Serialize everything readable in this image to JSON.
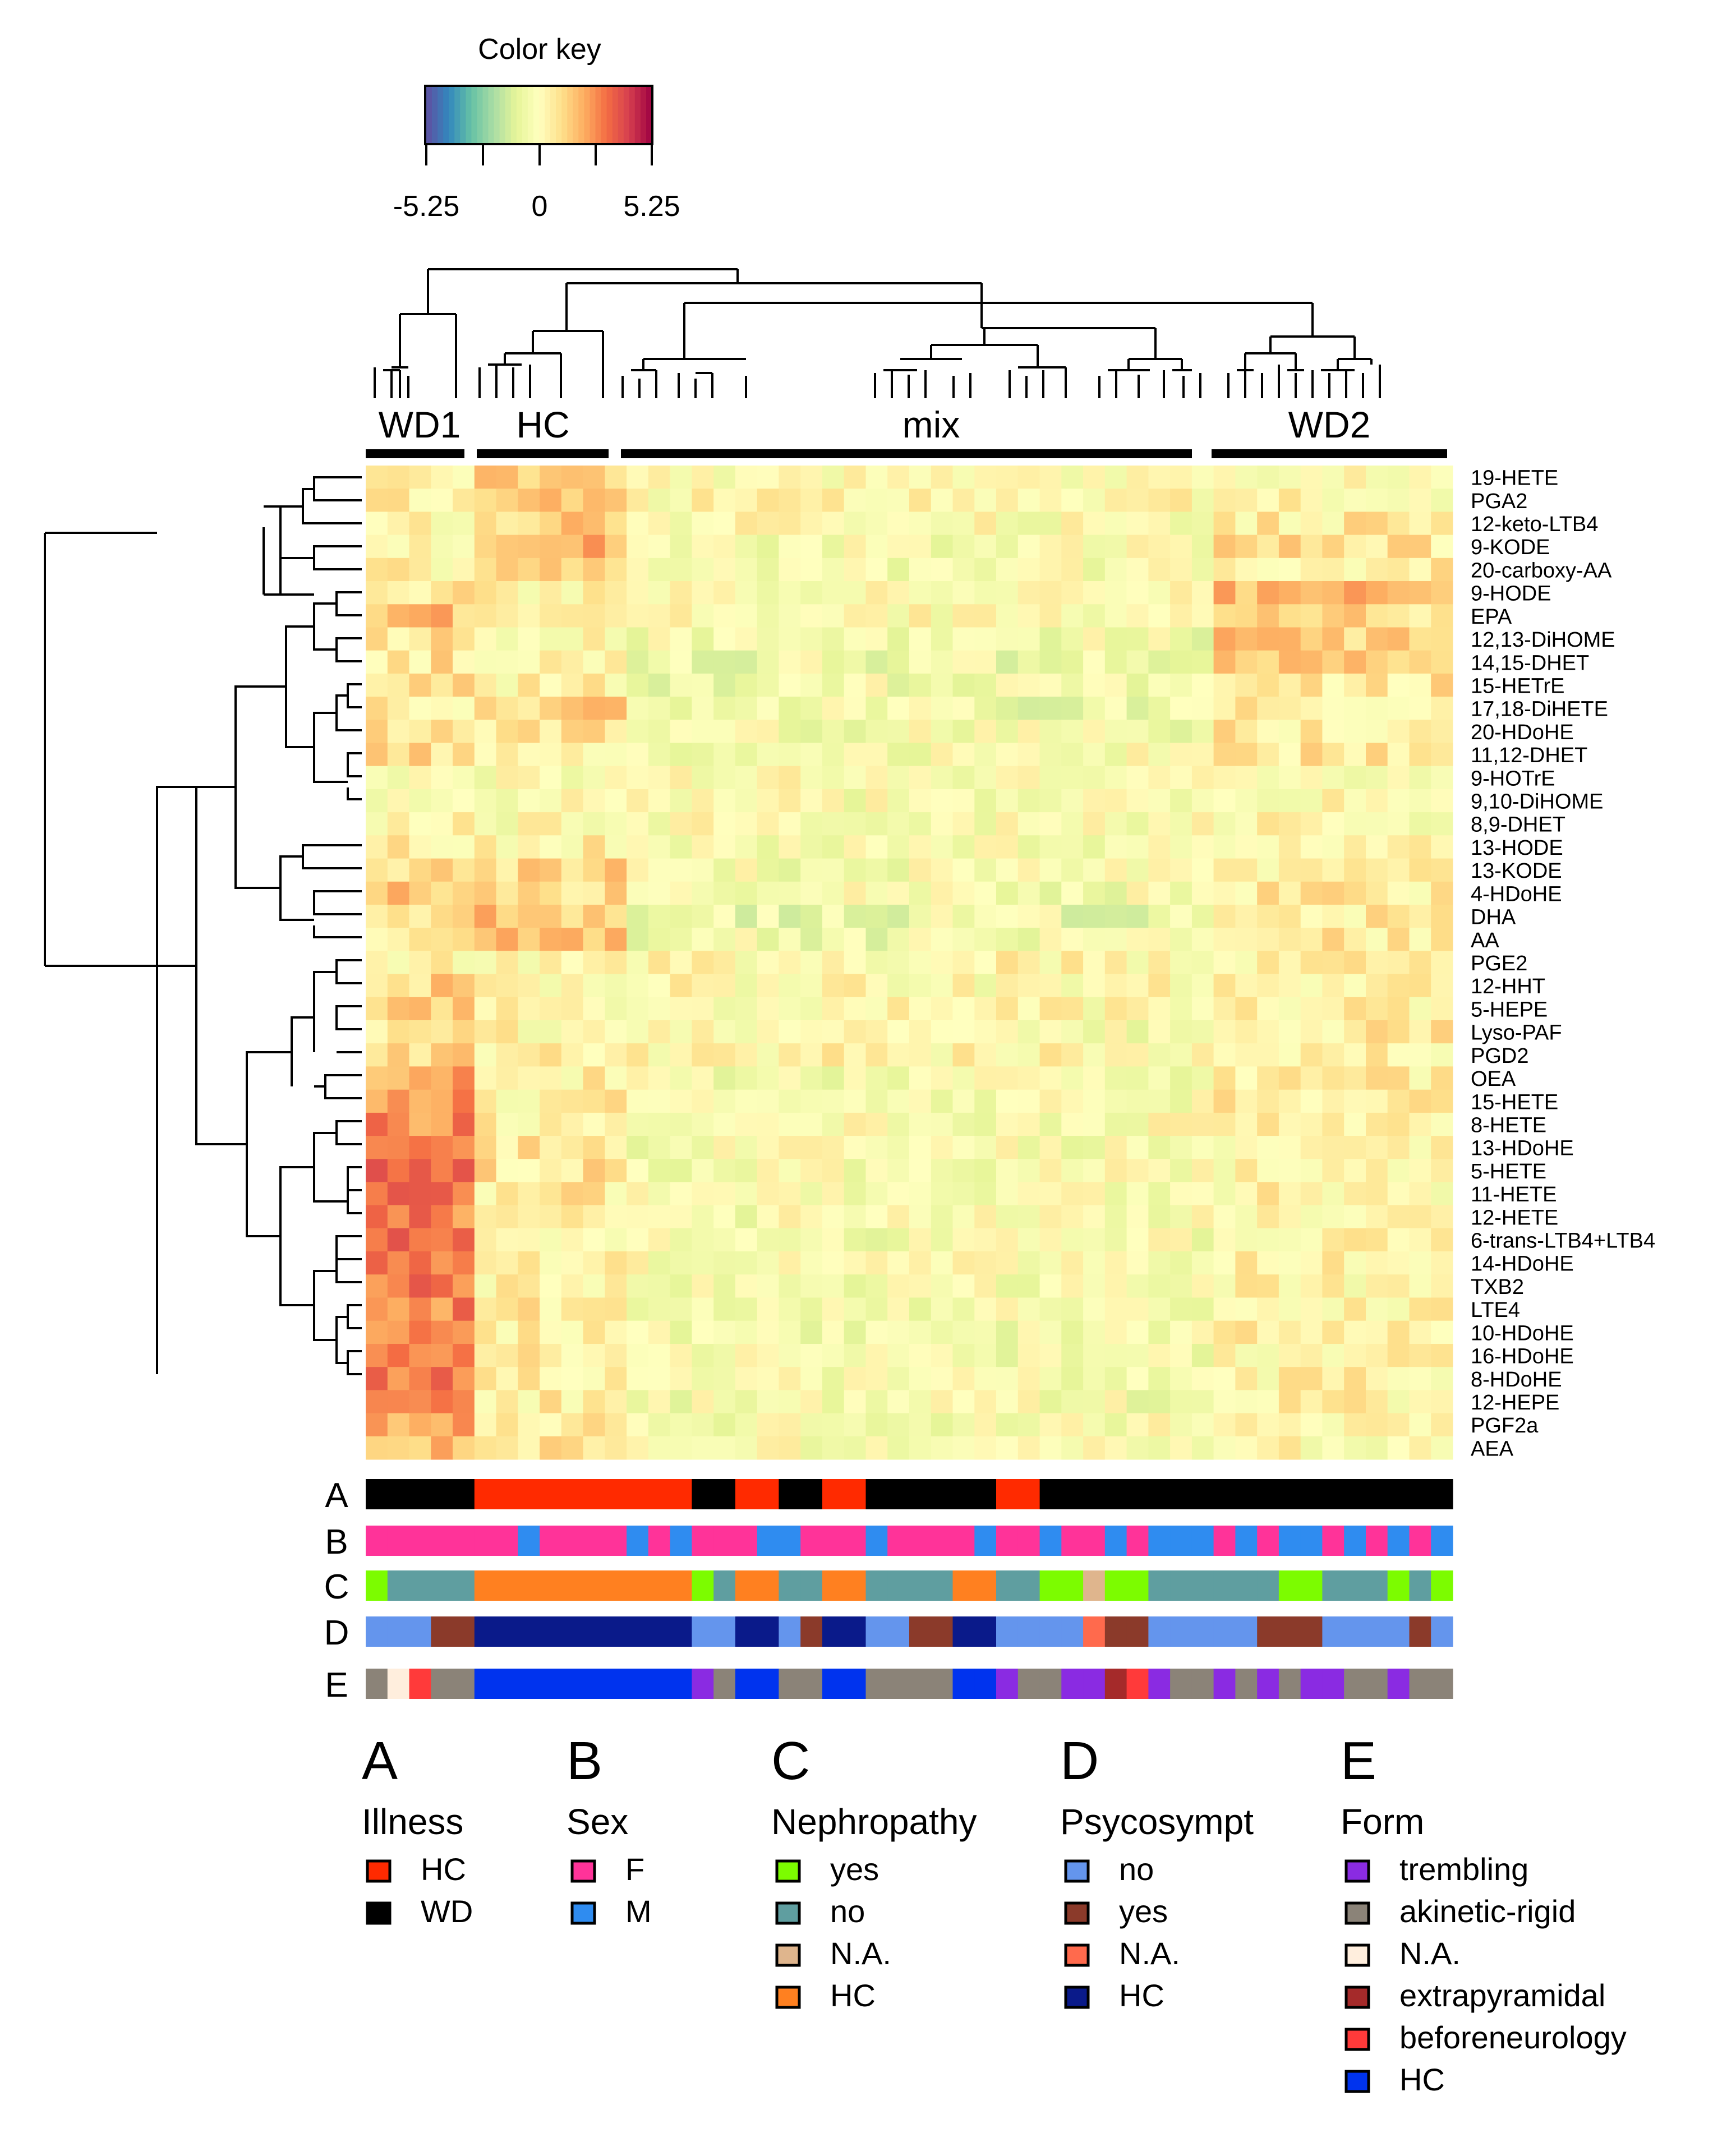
{
  "colors": {
    "scale": [
      "#5e4fa2",
      "#3288bd",
      "#66c2a5",
      "#abdda4",
      "#e6f598",
      "#ffffbf",
      "#fee08b",
      "#fdae61",
      "#f46d43",
      "#d53e4f",
      "#9e0142"
    ],
    "illness": {
      "HC": "#ff2a00",
      "WD": "#000000"
    },
    "sex": {
      "F": "#ff3399",
      "M": "#2f8cf0"
    },
    "nephropathy": {
      "yes": "#7cfc00",
      "no": "#5f9ea0",
      "N.A.": "#dfb58d",
      "HC": "#ff8020"
    },
    "psycosympt": {
      "no": "#6495ed",
      "yes": "#8b3a2a",
      "N.A.": "#ff6a4d",
      "HC": "#0a1a8a"
    },
    "form": {
      "trembling": "#8a2be2",
      "akinetic-rigid": "#8b8378",
      "N.A.": "#ffeedd",
      "extrapyramidal": "#a52a2a",
      "beforeneurology": "#ff3a3a",
      "HC": "#0033ee"
    }
  },
  "color_key": {
    "title": "Color key",
    "ticks": [
      "-5.25",
      "0",
      "5.25"
    ]
  },
  "clusters": [
    "WD1",
    "HC",
    "mix",
    "WD2"
  ],
  "chart_data": {
    "type": "heatmap",
    "title": "",
    "color_range": [
      -5.25,
      5.25
    ],
    "n_samples": 50,
    "cluster_spans": {
      "WD1": [
        0,
        4
      ],
      "HC": [
        5,
        11
      ],
      "mix": [
        12,
        38
      ],
      "WD2": [
        39,
        49
      ]
    },
    "rows": [
      "19-HETE",
      "PGA2",
      "12-keto-LTB4",
      "9-KODE",
      "20-carboxy-AA",
      "9-HODE",
      "EPA",
      "12,13-DiHOME",
      "14,15-DHET",
      "15-HETrE",
      "17,18-DiHETE",
      "20-HDoHE",
      "11,12-DHET",
      "9-HOTrE",
      "9,10-DiHOME",
      "8,9-DHET",
      "13-HODE",
      "13-KODE",
      "4-HDoHE",
      "DHA",
      "AA",
      "PGE2",
      "12-HHT",
      "5-HEPE",
      "Lyso-PAF",
      "PGD2",
      "OEA",
      "15-HETE",
      "8-HETE",
      "13-HDoHE",
      "5-HETE",
      "11-HETE",
      "12-HETE",
      "6-trans-LTB4+LTB4",
      "14-HDoHE",
      "TXB2",
      "LTE4",
      "10-HDoHE",
      "16-HDoHE",
      "8-HDoHE",
      "12-HEPE",
      "PGF2a",
      "AEA"
    ],
    "group_means": {
      "WD1": [
        0.3,
        0.5,
        0.2,
        0.4,
        0.3,
        0.8,
        1.6,
        1.0,
        0.8,
        0.8,
        0.6,
        1.2,
        1.0,
        0.0,
        0.1,
        0.1,
        0.4,
        1.2,
        1.6,
        1.0,
        0.6,
        0.3,
        1.2,
        1.6,
        0.8,
        1.0,
        2.0,
        2.4,
        2.6,
        2.8,
        3.2,
        3.0,
        2.8,
        3.4,
        3.0,
        3.2,
        2.8,
        2.6,
        3.0,
        2.8,
        3.2,
        2.0,
        1.8
      ],
      "HC": [
        1.2,
        1.6,
        1.4,
        1.8,
        1.6,
        0.2,
        0.3,
        0.3,
        0.3,
        0.4,
        1.2,
        1.0,
        0.6,
        0.0,
        0.1,
        0.0,
        0.4,
        1.2,
        1.2,
        1.6,
        1.4,
        0.3,
        0.2,
        0.3,
        0.3,
        0.3,
        0.4,
        0.4,
        0.5,
        0.6,
        0.8,
        0.6,
        0.6,
        0.5,
        0.5,
        0.5,
        0.6,
        0.6,
        0.5,
        0.5,
        0.5,
        0.6,
        1.0
      ],
      "mix": [
        0.0,
        0.1,
        0.0,
        -0.2,
        -0.2,
        -0.1,
        0.0,
        -0.4,
        -0.5,
        -0.4,
        -0.5,
        -0.3,
        -0.2,
        0.0,
        -0.2,
        -0.1,
        -0.3,
        -0.3,
        -0.3,
        -0.6,
        -0.5,
        0.2,
        0.1,
        0.1,
        -0.2,
        0.2,
        -0.3,
        -0.2,
        -0.1,
        -0.2,
        -0.2,
        -0.2,
        -0.2,
        -0.3,
        -0.2,
        -0.2,
        -0.2,
        -0.3,
        -0.3,
        -0.3,
        -0.3,
        -0.2,
        -0.1
      ],
      "WD2": [
        0.2,
        0.2,
        0.6,
        0.8,
        0.6,
        1.6,
        1.0,
        1.4,
        1.2,
        0.8,
        0.6,
        0.6,
        0.6,
        0.0,
        0.3,
        0.1,
        0.6,
        0.6,
        0.6,
        0.6,
        0.6,
        0.3,
        0.4,
        0.4,
        0.6,
        0.5,
        0.5,
        0.6,
        0.4,
        0.3,
        0.3,
        0.3,
        0.3,
        0.4,
        0.3,
        0.3,
        0.3,
        0.3,
        0.3,
        0.3,
        0.3,
        0.3,
        0.2
      ]
    },
    "annotations": {
      "A": {
        "values": [
          "WD",
          "WD",
          "WD",
          "WD",
          "WD",
          "HC",
          "HC",
          "HC",
          "HC",
          "HC",
          "HC",
          "HC",
          "HC",
          "HC",
          "HC",
          "WD",
          "WD",
          "HC",
          "HC",
          "WD",
          "WD",
          "HC",
          "HC",
          "WD",
          "WD",
          "WD",
          "WD",
          "WD",
          "WD",
          "HC",
          "HC",
          "WD",
          "WD",
          "WD",
          "WD",
          "WD",
          "WD",
          "WD",
          "WD",
          "WD",
          "WD",
          "WD",
          "WD",
          "WD",
          "WD",
          "WD",
          "WD",
          "WD",
          "WD",
          "WD"
        ]
      },
      "B": {
        "values": [
          "F",
          "F",
          "F",
          "F",
          "F",
          "F",
          "F",
          "M",
          "F",
          "F",
          "F",
          "F",
          "M",
          "F",
          "M",
          "F",
          "F",
          "F",
          "M",
          "M",
          "F",
          "F",
          "F",
          "M",
          "F",
          "F",
          "F",
          "F",
          "M",
          "F",
          "F",
          "M",
          "F",
          "F",
          "M",
          "F",
          "M",
          "M",
          "M",
          "F",
          "M",
          "F",
          "M",
          "M",
          "F",
          "M",
          "F",
          "M",
          "F",
          "M"
        ]
      },
      "C": {
        "values": [
          "yes",
          "no",
          "no",
          "no",
          "no",
          "HC",
          "HC",
          "HC",
          "HC",
          "HC",
          "HC",
          "HC",
          "HC",
          "HC",
          "HC",
          "yes",
          "no",
          "HC",
          "HC",
          "no",
          "no",
          "HC",
          "HC",
          "no",
          "no",
          "no",
          "no",
          "HC",
          "HC",
          "no",
          "no",
          "yes",
          "yes",
          "N.A.",
          "yes",
          "yes",
          "no",
          "no",
          "no",
          "no",
          "no",
          "no",
          "yes",
          "yes",
          "no",
          "no",
          "no",
          "yes",
          "no",
          "yes"
        ]
      },
      "D": {
        "values": [
          "no",
          "no",
          "no",
          "yes",
          "yes",
          "HC",
          "HC",
          "HC",
          "HC",
          "HC",
          "HC",
          "HC",
          "HC",
          "HC",
          "HC",
          "no",
          "no",
          "HC",
          "HC",
          "no",
          "yes",
          "HC",
          "HC",
          "no",
          "no",
          "yes",
          "yes",
          "HC",
          "HC",
          "no",
          "no",
          "no",
          "no",
          "N.A.",
          "yes",
          "yes",
          "no",
          "no",
          "no",
          "no",
          "no",
          "yes",
          "yes",
          "yes",
          "no",
          "no",
          "no",
          "no",
          "yes",
          "no"
        ]
      },
      "E": {
        "values": [
          "akinetic-rigid",
          "N.A.",
          "beforeneurology",
          "akinetic-rigid",
          "akinetic-rigid",
          "HC",
          "HC",
          "HC",
          "HC",
          "HC",
          "HC",
          "HC",
          "HC",
          "HC",
          "HC",
          "trembling",
          "akinetic-rigid",
          "HC",
          "HC",
          "akinetic-rigid",
          "akinetic-rigid",
          "HC",
          "HC",
          "akinetic-rigid",
          "akinetic-rigid",
          "akinetic-rigid",
          "akinetic-rigid",
          "HC",
          "HC",
          "trembling",
          "akinetic-rigid",
          "akinetic-rigid",
          "trembling",
          "trembling",
          "extrapyramidal",
          "beforeneurology",
          "trembling",
          "akinetic-rigid",
          "akinetic-rigid",
          "trembling",
          "akinetic-rigid",
          "trembling",
          "akinetic-rigid",
          "trembling",
          "trembling",
          "akinetic-rigid",
          "akinetic-rigid",
          "trembling",
          "akinetic-rigid",
          "akinetic-rigid"
        ]
      }
    }
  },
  "annotation_rows": [
    "A",
    "B",
    "C",
    "D",
    "E"
  ],
  "legends": [
    {
      "letter": "A",
      "title": "Illness",
      "key": "illness",
      "items": [
        "HC",
        "WD"
      ]
    },
    {
      "letter": "B",
      "title": "Sex",
      "key": "sex",
      "items": [
        "F",
        "M"
      ]
    },
    {
      "letter": "C",
      "title": "Nephropathy",
      "key": "nephropathy",
      "items": [
        "yes",
        "no",
        "N.A.",
        "HC"
      ]
    },
    {
      "letter": "D",
      "title": "Psycosympt",
      "key": "psycosympt",
      "items": [
        "no",
        "yes",
        "N.A.",
        "HC"
      ]
    },
    {
      "letter": "E",
      "title": "Form",
      "key": "form",
      "items": [
        "trembling",
        "akinetic-rigid",
        "N.A.",
        "extrapyramidal",
        "beforeneurology",
        "HC"
      ]
    }
  ]
}
